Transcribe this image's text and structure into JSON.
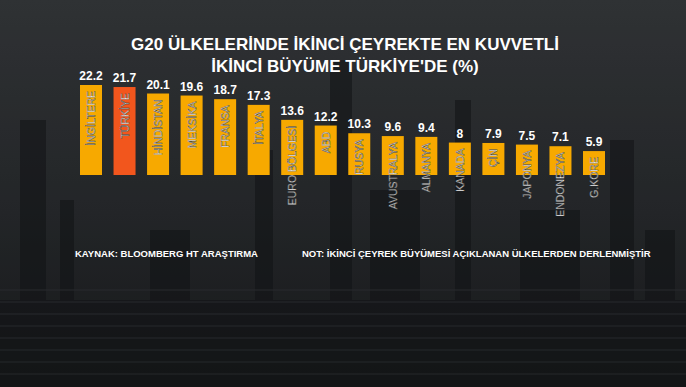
{
  "chart_data": {
    "type": "bar",
    "title": "G20 ÜLKELERİNDE İKİNCİ ÇEYREKTE EN KUVVETLİ\nİKİNCİ BÜYÜME TÜRKİYE'DE (%)",
    "source": "KAYNAK: BLOOMBERG HT ARAŞTIRMA",
    "note": "NOT: İKİNCİ ÇEYREK BÜYÜMESİ AÇIKLANAN ÜLKELERDEN DERLENMİŞTİR",
    "categories": [
      "İNGİLTERE",
      "TÜRKİYE",
      "HİNDİSTAN",
      "MEKSİKA",
      "FRANSA",
      "İTALYA",
      "EURO BÖLGESİ",
      "ABD",
      "RUSYA",
      "AVUSTRALYA",
      "ALMANYA",
      "KANADA",
      "ÇİN",
      "JAPONYA",
      "ENDONEZYA",
      "G.KORE"
    ],
    "values": [
      22.2,
      21.7,
      20.1,
      19.6,
      18.7,
      17.3,
      13.6,
      12.2,
      10.3,
      9.6,
      9.4,
      8,
      7.9,
      7.5,
      7.1,
      5.9
    ],
    "colors": [
      "#f7a900",
      "#f2561d",
      "#f7a900",
      "#f7a900",
      "#f7a900",
      "#f7a900",
      "#f7a900",
      "#f7a900",
      "#f7a900",
      "#f7a900",
      "#f7a900",
      "#f7a900",
      "#f7a900",
      "#f7a900",
      "#f7a900",
      "#f7a900"
    ],
    "ylim": [
      0,
      22.2
    ],
    "data_labels": true,
    "tick_labels": "x",
    "grid": false
  }
}
